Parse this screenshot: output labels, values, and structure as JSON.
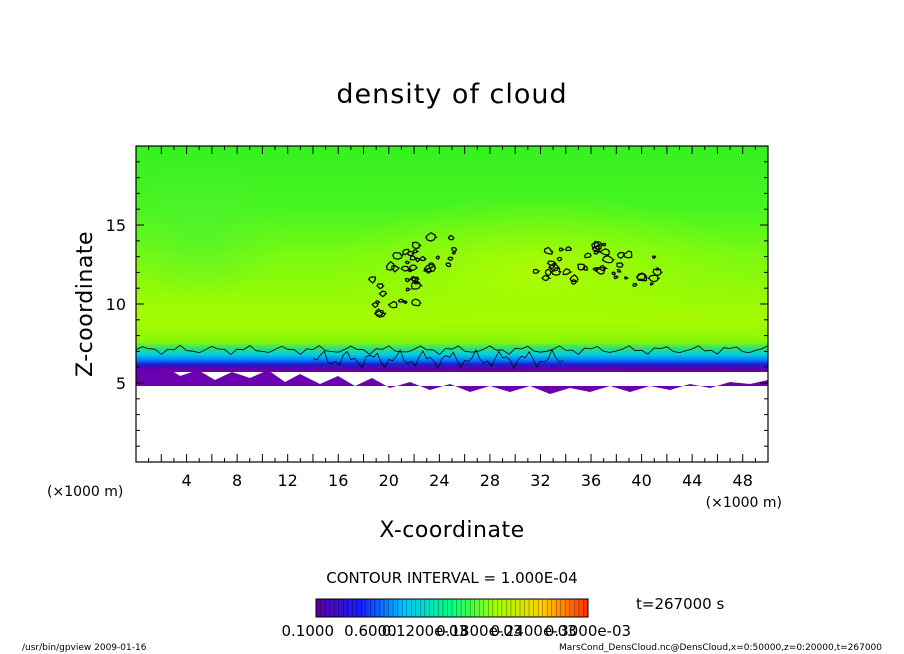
{
  "chart_data": {
    "type": "heatmap",
    "title": "density of cloud",
    "xlabel": "X-coordinate",
    "ylabel": "Z-coordinate",
    "x_unit": "(×1000 m)",
    "y_unit": "(×1000 m)",
    "xlim": [
      0,
      50
    ],
    "ylim": [
      0,
      20
    ],
    "x_ticks": [
      "4",
      "8",
      "12",
      "16",
      "20",
      "24",
      "28",
      "32",
      "36",
      "40",
      "44",
      "48"
    ],
    "y_ticks": [
      "5",
      "10",
      "15"
    ],
    "contour_interval": "CONTOUR INTERVAL = 1.000E-04",
    "time_label": "t=267000 s",
    "colorbar_labels": [
      "0.1000",
      "0.6000",
      "0.1200e-03",
      "0.1800e-03",
      "0.2400e-03",
      "0.3000e-03"
    ],
    "colorscale": [
      "#5a00a0",
      "#1a1aff",
      "#00c8ff",
      "#00ff80",
      "#a0ff00",
      "#ffd000",
      "#ff3000"
    ],
    "regions": [
      {
        "name": "background-field",
        "x": [
          0,
          50
        ],
        "z": [
          6.5,
          20
        ],
        "color": "#80ff00"
      },
      {
        "name": "upper-layer",
        "x": [
          0,
          50
        ],
        "z": [
          15,
          20
        ],
        "color": "#40ff20"
      },
      {
        "name": "cloud-base-band",
        "x": [
          0,
          50
        ],
        "z": [
          5.3,
          7.2
        ],
        "color": "#0040ff"
      },
      {
        "name": "lowest-density-band",
        "x": [
          0,
          50
        ],
        "z": [
          5,
          5.8
        ],
        "color": "#6a00b0"
      },
      {
        "name": "cloud-free-region",
        "x": [
          0,
          50
        ],
        "z": [
          0,
          5
        ],
        "color": "#ffffff"
      }
    ],
    "contour_clusters": [
      {
        "x": 21.5,
        "z": 12.5
      },
      {
        "x": 23.5,
        "z": 13.2
      },
      {
        "x": 20.5,
        "z": 10.5
      },
      {
        "x": 33,
        "z": 12.5
      },
      {
        "x": 36.5,
        "z": 12.8
      },
      {
        "x": 39.5,
        "z": 12.3
      }
    ],
    "grid": false
  },
  "footer": {
    "left": "/usr/bin/gpview  2009-01-16",
    "right": "MarsCond_DensCloud.nc@DensCloud,x=0:50000,z=0:20000,t=267000"
  }
}
